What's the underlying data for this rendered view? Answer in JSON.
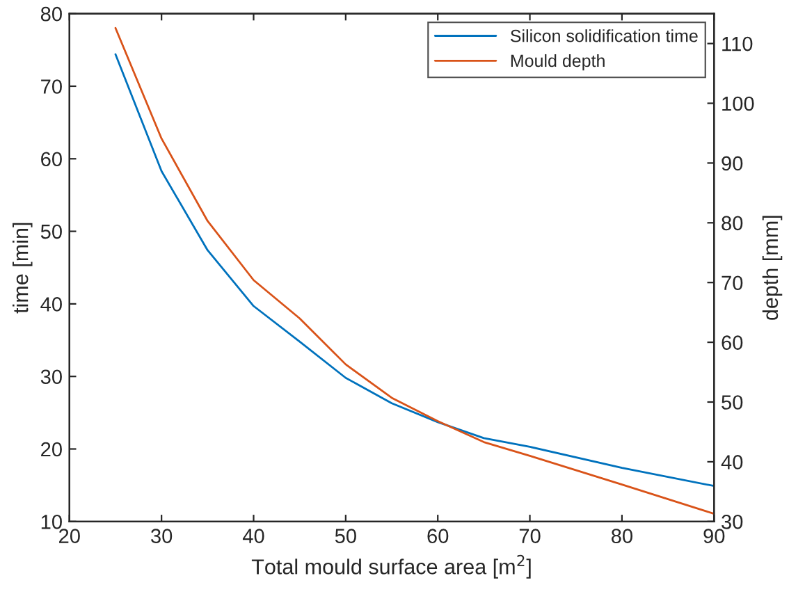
{
  "chart_data": {
    "type": "line",
    "xlabel": "Total mould surface area [m$^{2}$]",
    "ylabel": "time [min]",
    "y2label": "depth [mm]",
    "x": [
      25,
      30,
      35,
      40,
      45,
      50,
      55,
      60,
      65,
      70,
      80,
      90
    ],
    "series": [
      {
        "name": "Silicon solidification time",
        "color": "#0072bd",
        "values": [
          74.4,
          58.3,
          47.4,
          39.7,
          34.8,
          29.8,
          26.3,
          23.7,
          21.5,
          20.3,
          17.4,
          14.9
        ]
      },
      {
        "name": "Mould depth",
        "color": "#d95319",
        "axis": "y2",
        "values": [
          112.6,
          94.1,
          80.3,
          70.4,
          64.0,
          56.3,
          50.7,
          46.8,
          43.3,
          41.0,
          36.2,
          31.3
        ]
      }
    ],
    "xlim": [
      20,
      90
    ],
    "xticks": [
      20,
      30,
      40,
      50,
      60,
      70,
      80,
      90
    ],
    "ylim": [
      10,
      80
    ],
    "yticks": [
      10,
      20,
      30,
      40,
      50,
      60,
      70,
      80
    ],
    "y2lim": [
      30,
      115
    ],
    "y2ticks": [
      30,
      40,
      50,
      60,
      70,
      80,
      90,
      100,
      110
    ],
    "grid": false,
    "legend": "top right",
    "marker": "none",
    "line_style": "solid"
  }
}
